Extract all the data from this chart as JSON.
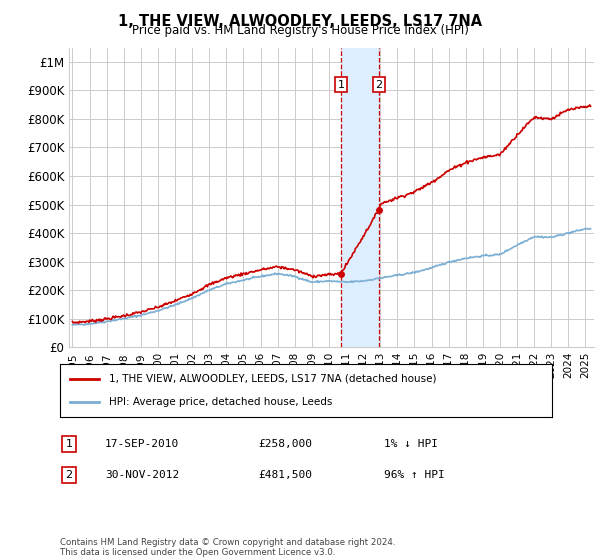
{
  "title": "1, THE VIEW, ALWOODLEY, LEEDS, LS17 7NA",
  "subtitle": "Price paid vs. HM Land Registry's House Price Index (HPI)",
  "ylabel_ticks": [
    "£0",
    "£100K",
    "£200K",
    "£300K",
    "£400K",
    "£500K",
    "£600K",
    "£700K",
    "£800K",
    "£900K",
    "£1M"
  ],
  "ytick_values": [
    0,
    100000,
    200000,
    300000,
    400000,
    500000,
    600000,
    700000,
    800000,
    900000,
    1000000
  ],
  "ylim": [
    0,
    1050000
  ],
  "xlim_start": 1994.8,
  "xlim_end": 2025.5,
  "sale1_date": 2010.71,
  "sale1_price": 258000,
  "sale2_date": 2012.92,
  "sale2_price": 481500,
  "sale1_label": "1",
  "sale2_label": "2",
  "shade_start": 2010.71,
  "shade_end": 2012.92,
  "legend_line1": "1, THE VIEW, ALWOODLEY, LEEDS, LS17 7NA (detached house)",
  "legend_line2": "HPI: Average price, detached house, Leeds",
  "annotation1_num": "1",
  "annotation1_date": "17-SEP-2010",
  "annotation1_price": "£258,000",
  "annotation1_hpi": "1% ↓ HPI",
  "annotation2_num": "2",
  "annotation2_date": "30-NOV-2012",
  "annotation2_price": "£481,500",
  "annotation2_hpi": "96% ↑ HPI",
  "footer": "Contains HM Land Registry data © Crown copyright and database right 2024.\nThis data is licensed under the Open Government Licence v3.0.",
  "hpi_color": "#7bafd4",
  "price_color": "#cc0000",
  "shade_color": "#ddeeff",
  "grid_color": "#cccccc",
  "background_color": "#ffffff",
  "hpi_years": [
    1995,
    1996,
    1997,
    1998,
    1999,
    2000,
    2001,
    2002,
    2003,
    2004,
    2005,
    2006,
    2007,
    2008,
    2009,
    2010,
    2011,
    2012,
    2013,
    2014,
    2015,
    2016,
    2017,
    2018,
    2019,
    2020,
    2021,
    2022,
    2023,
    2024,
    2025
  ],
  "hpi_values": [
    78000,
    82000,
    90000,
    100000,
    112000,
    128000,
    148000,
    172000,
    200000,
    222000,
    235000,
    248000,
    258000,
    248000,
    228000,
    232000,
    228000,
    232000,
    242000,
    252000,
    262000,
    278000,
    298000,
    312000,
    320000,
    325000,
    358000,
    388000,
    385000,
    400000,
    415000
  ],
  "prop_years": [
    1995,
    1996,
    1997,
    1998,
    1999,
    2000,
    2001,
    2002,
    2003,
    2004,
    2005,
    2006,
    2007,
    2008,
    2009,
    2010,
    2010.71,
    2012.92,
    2013,
    2014,
    2015,
    2016,
    2017,
    2018,
    2019,
    2020,
    2021,
    2022,
    2023,
    2024,
    2025.3
  ],
  "prop_values": [
    86000,
    91000,
    99000,
    110000,
    123000,
    140000,
    162000,
    188000,
    219000,
    243000,
    257000,
    271000,
    282000,
    271000,
    249000,
    254000,
    258000,
    481500,
    502000,
    524000,
    544000,
    578000,
    619000,
    648000,
    665000,
    675000,
    744000,
    806000,
    800000,
    832000,
    845000
  ]
}
